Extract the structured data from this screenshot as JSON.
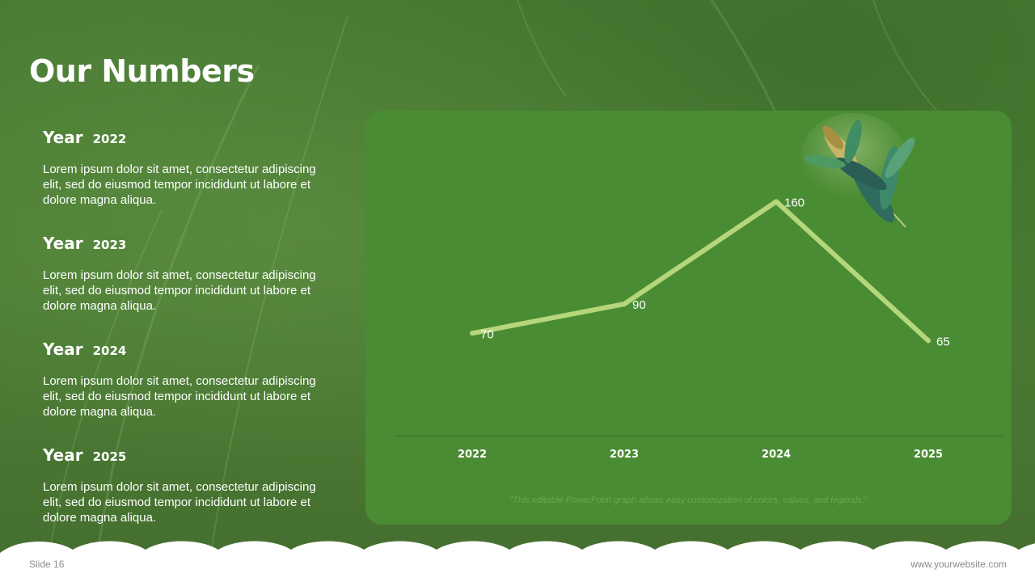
{
  "slide": {
    "title": "Our Numbers",
    "footer_left": "Slide 16",
    "footer_right": "www.yourwebsite.com"
  },
  "years": [
    {
      "label": "Year",
      "year": "2022",
      "text": "Lorem ipsum dolor sit amet, consectetur adipiscing elit, sed do eiusmod tempor incididunt ut labore et dolore magna aliqua."
    },
    {
      "label": "Year",
      "year": "2023",
      "text": "Lorem ipsum dolor sit amet, consectetur adipiscing elit, sed do eiusmod tempor incididunt ut labore et dolore magna aliqua."
    },
    {
      "label": "Year",
      "year": "2024",
      "text": "Lorem ipsum dolor sit amet, consectetur adipiscing elit, sed do eiusmod tempor incididunt ut labore et dolore magna aliqua."
    },
    {
      "label": "Year",
      "year": "2025",
      "text": "Lorem ipsum dolor sit amet, consectetur adipiscing elit, sed do eiusmod tempor incididunt ut labore et dolore magna aliqua."
    }
  ],
  "chart_note": "\"This editable PowerPoint graph allows easy customization of colors, values, and legends.\"",
  "colors": {
    "background": "#4e7f36",
    "panel": "#4a8c33",
    "line": "#b5d67a",
    "text": "#ffffff"
  },
  "chart_data": {
    "type": "line",
    "categories": [
      "2022",
      "2023",
      "2024",
      "2025"
    ],
    "series": [
      {
        "values": [
          70,
          90,
          160,
          65
        ]
      }
    ],
    "data_labels": [
      "70",
      "90",
      "160",
      "65"
    ],
    "title": "",
    "xlabel": "",
    "ylabel": "",
    "ylim": [
      0,
      200
    ],
    "grid": false,
    "legend": "none"
  }
}
